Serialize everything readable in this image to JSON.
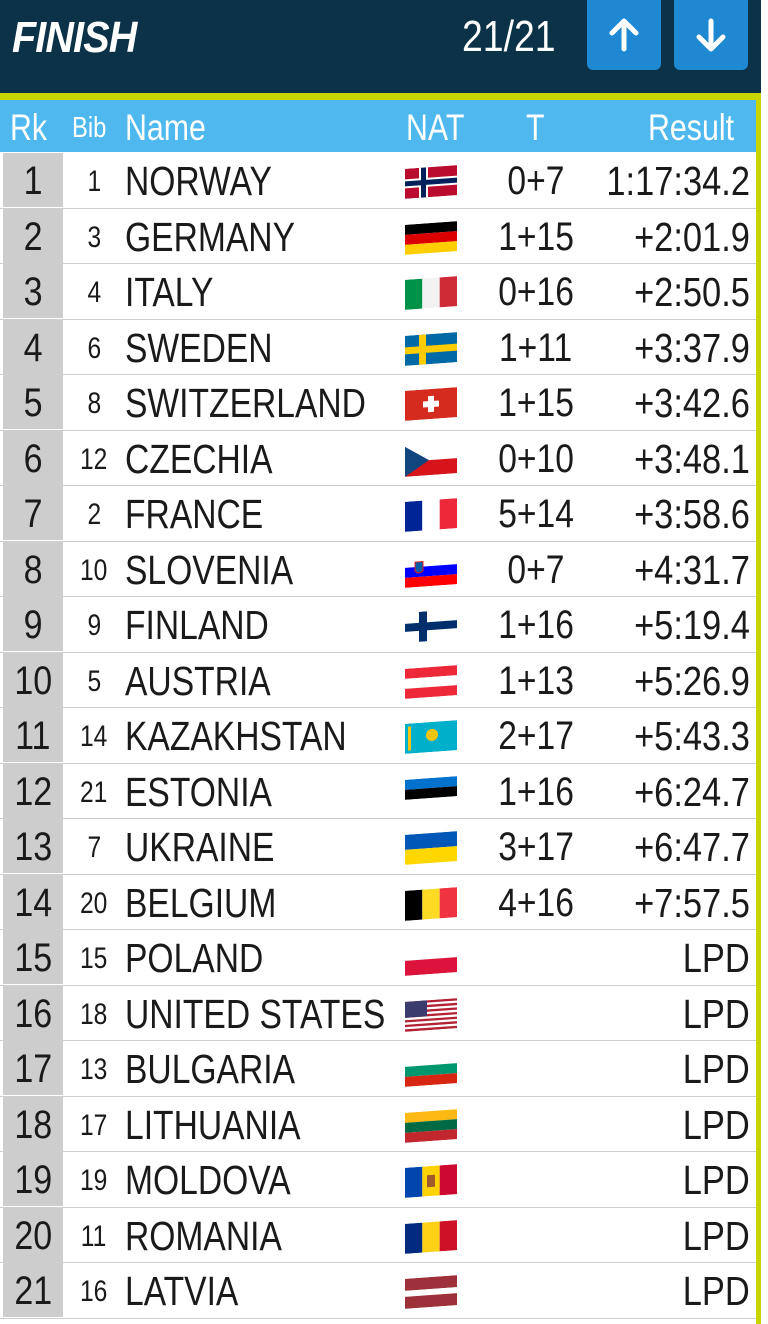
{
  "header": {
    "title": "FINISH",
    "counter": "21/21",
    "up_icon": "arrow-up-icon",
    "down_icon": "arrow-down-icon",
    "accent": "#c8d400",
    "background": "#0b3247",
    "button_color": "#1e88d2"
  },
  "columns": {
    "rk": "Rk",
    "bib": "Bib",
    "name": "Name",
    "nat": "NAT",
    "t": "T",
    "result": "Result"
  },
  "rows": [
    {
      "rk": "1",
      "bib": "1",
      "name": "NORWAY",
      "flag": "flag-norway-icon",
      "t": "0+7",
      "result": "1:17:34.2"
    },
    {
      "rk": "2",
      "bib": "3",
      "name": "GERMANY",
      "flag": "flag-germany-icon",
      "t": "1+15",
      "result": "+2:01.9"
    },
    {
      "rk": "3",
      "bib": "4",
      "name": "ITALY",
      "flag": "flag-italy-icon",
      "t": "0+16",
      "result": "+2:50.5"
    },
    {
      "rk": "4",
      "bib": "6",
      "name": "SWEDEN",
      "flag": "flag-sweden-icon",
      "t": "1+11",
      "result": "+3:37.9"
    },
    {
      "rk": "5",
      "bib": "8",
      "name": "SWITZERLAND",
      "flag": "flag-switzerland-icon",
      "t": "1+15",
      "result": "+3:42.6"
    },
    {
      "rk": "6",
      "bib": "12",
      "name": "CZECHIA",
      "flag": "flag-czechia-icon",
      "t": "0+10",
      "result": "+3:48.1"
    },
    {
      "rk": "7",
      "bib": "2",
      "name": "FRANCE",
      "flag": "flag-france-icon",
      "t": "5+14",
      "result": "+3:58.6"
    },
    {
      "rk": "8",
      "bib": "10",
      "name": "SLOVENIA",
      "flag": "flag-slovenia-icon",
      "t": "0+7",
      "result": "+4:31.7"
    },
    {
      "rk": "9",
      "bib": "9",
      "name": "FINLAND",
      "flag": "flag-finland-icon",
      "t": "1+16",
      "result": "+5:19.4"
    },
    {
      "rk": "10",
      "bib": "5",
      "name": "AUSTRIA",
      "flag": "flag-austria-icon",
      "t": "1+13",
      "result": "+5:26.9"
    },
    {
      "rk": "11",
      "bib": "14",
      "name": "KAZAKHSTAN",
      "flag": "flag-kazakhstan-icon",
      "t": "2+17",
      "result": "+5:43.3"
    },
    {
      "rk": "12",
      "bib": "21",
      "name": "ESTONIA",
      "flag": "flag-estonia-icon",
      "t": "1+16",
      "result": "+6:24.7"
    },
    {
      "rk": "13",
      "bib": "7",
      "name": "UKRAINE",
      "flag": "flag-ukraine-icon",
      "t": "3+17",
      "result": "+6:47.7"
    },
    {
      "rk": "14",
      "bib": "20",
      "name": "BELGIUM",
      "flag": "flag-belgium-icon",
      "t": "4+16",
      "result": "+7:57.5"
    },
    {
      "rk": "15",
      "bib": "15",
      "name": "POLAND",
      "flag": "flag-poland-icon",
      "t": "",
      "result": "LPD"
    },
    {
      "rk": "16",
      "bib": "18",
      "name": "UNITED STATES",
      "flag": "flag-usa-icon",
      "t": "",
      "result": "LPD"
    },
    {
      "rk": "17",
      "bib": "13",
      "name": "BULGARIA",
      "flag": "flag-bulgaria-icon",
      "t": "",
      "result": "LPD"
    },
    {
      "rk": "18",
      "bib": "17",
      "name": "LITHUANIA",
      "flag": "flag-lithuania-icon",
      "t": "",
      "result": "LPD"
    },
    {
      "rk": "19",
      "bib": "19",
      "name": "MOLDOVA",
      "flag": "flag-moldova-icon",
      "t": "",
      "result": "LPD"
    },
    {
      "rk": "20",
      "bib": "11",
      "name": "ROMANIA",
      "flag": "flag-romania-icon",
      "t": "",
      "result": "LPD"
    },
    {
      "rk": "21",
      "bib": "16",
      "name": "LATVIA",
      "flag": "flag-latvia-icon",
      "t": "",
      "result": "LPD"
    }
  ]
}
